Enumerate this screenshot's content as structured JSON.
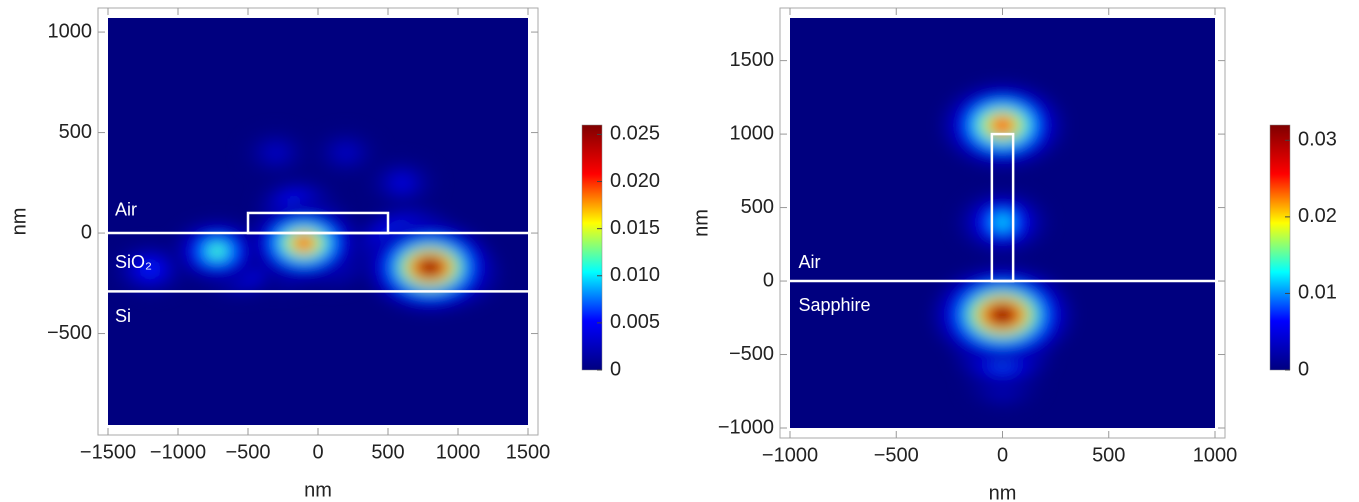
{
  "chart_data": [
    {
      "type": "heatmap",
      "xlabel": "nm",
      "ylabel": "nm",
      "xlim": [
        -1500,
        1500
      ],
      "ylim": [
        -955,
        1070
      ],
      "xticks": [
        {
          "value": -1500,
          "label": "−1500"
        },
        {
          "value": -1000,
          "label": "−1000"
        },
        {
          "value": -500,
          "label": "−500"
        },
        0,
        500,
        1000,
        1500
      ],
      "yticks": [
        {
          "value": -500,
          "label": "−500"
        },
        0,
        500,
        1000
      ],
      "colormap": [
        "#00007f",
        "#0000ff",
        "#00ffff",
        "#ffff00",
        "#ff0000",
        "#7f0000"
      ],
      "colorbar": {
        "lim": [
          0,
          0.026
        ],
        "ticks": [
          0,
          0.005,
          0.01,
          0.015,
          0.02,
          0.025
        ],
        "tick_labels": [
          "0",
          "0.005",
          "0.010",
          "0.015",
          "0.020",
          "0.025"
        ]
      },
      "spots": {
        "x": [
          -300,
          200,
          600,
          -1200,
          100,
          -250,
          -550,
          -150,
          -720,
          -50,
          950,
          650,
          -100,
          800
        ],
        "y": [
          400,
          400,
          250,
          -180,
          -150,
          -170,
          -180,
          130,
          -90,
          0,
          -200,
          -60,
          -50,
          -170
        ],
        "values": [
          0.003,
          0.003,
          0.004,
          0.006,
          0.006,
          0.006,
          0.008,
          0.008,
          0.012,
          0.012,
          0.015,
          0.018,
          0.02,
          0.026
        ]
      },
      "structure": {
        "lines_y": [
          0,
          -290
        ],
        "rect": {
          "x": [
            -500,
            500
          ],
          "y": [
            0,
            100
          ]
        }
      },
      "annotations": [
        "Air",
        "SiO₂",
        "Si"
      ]
    },
    {
      "type": "heatmap",
      "xlabel": "nm",
      "ylabel": "nm",
      "xlim": [
        -1000,
        1000
      ],
      "ylim": [
        -1000,
        1790
      ],
      "xticks": [
        {
          "value": -1000,
          "label": "−1000"
        },
        {
          "value": -500,
          "label": "−500"
        },
        0,
        500,
        1000
      ],
      "yticks": [
        {
          "value": -1000,
          "label": "−1000"
        },
        {
          "value": -500,
          "label": "−500"
        },
        0,
        500,
        1000,
        1500
      ],
      "colormap": [
        "#00007f",
        "#0000ff",
        "#00ffff",
        "#ffff00",
        "#ff0000",
        "#7f0000"
      ],
      "colorbar": {
        "lim": [
          0,
          0.032
        ],
        "ticks": [
          0,
          0.01,
          0.02,
          0.03
        ],
        "tick_labels": [
          "0",
          "0.01",
          "0.02",
          "0.03"
        ]
      },
      "spots": {
        "x": [
          0,
          0,
          0,
          0,
          0,
          0,
          0
        ],
        "y": [
          -700,
          -400,
          400,
          1000,
          -500,
          1060,
          -230
        ],
        "values": [
          0.005,
          0.01,
          0.012,
          0.012,
          0.014,
          0.025,
          0.032
        ]
      },
      "structure": {
        "lines_y": [
          0
        ],
        "rect": {
          "x": [
            -50,
            50
          ],
          "y": [
            0,
            1000
          ]
        }
      },
      "annotations": [
        "Air",
        "Sapphire"
      ]
    }
  ]
}
